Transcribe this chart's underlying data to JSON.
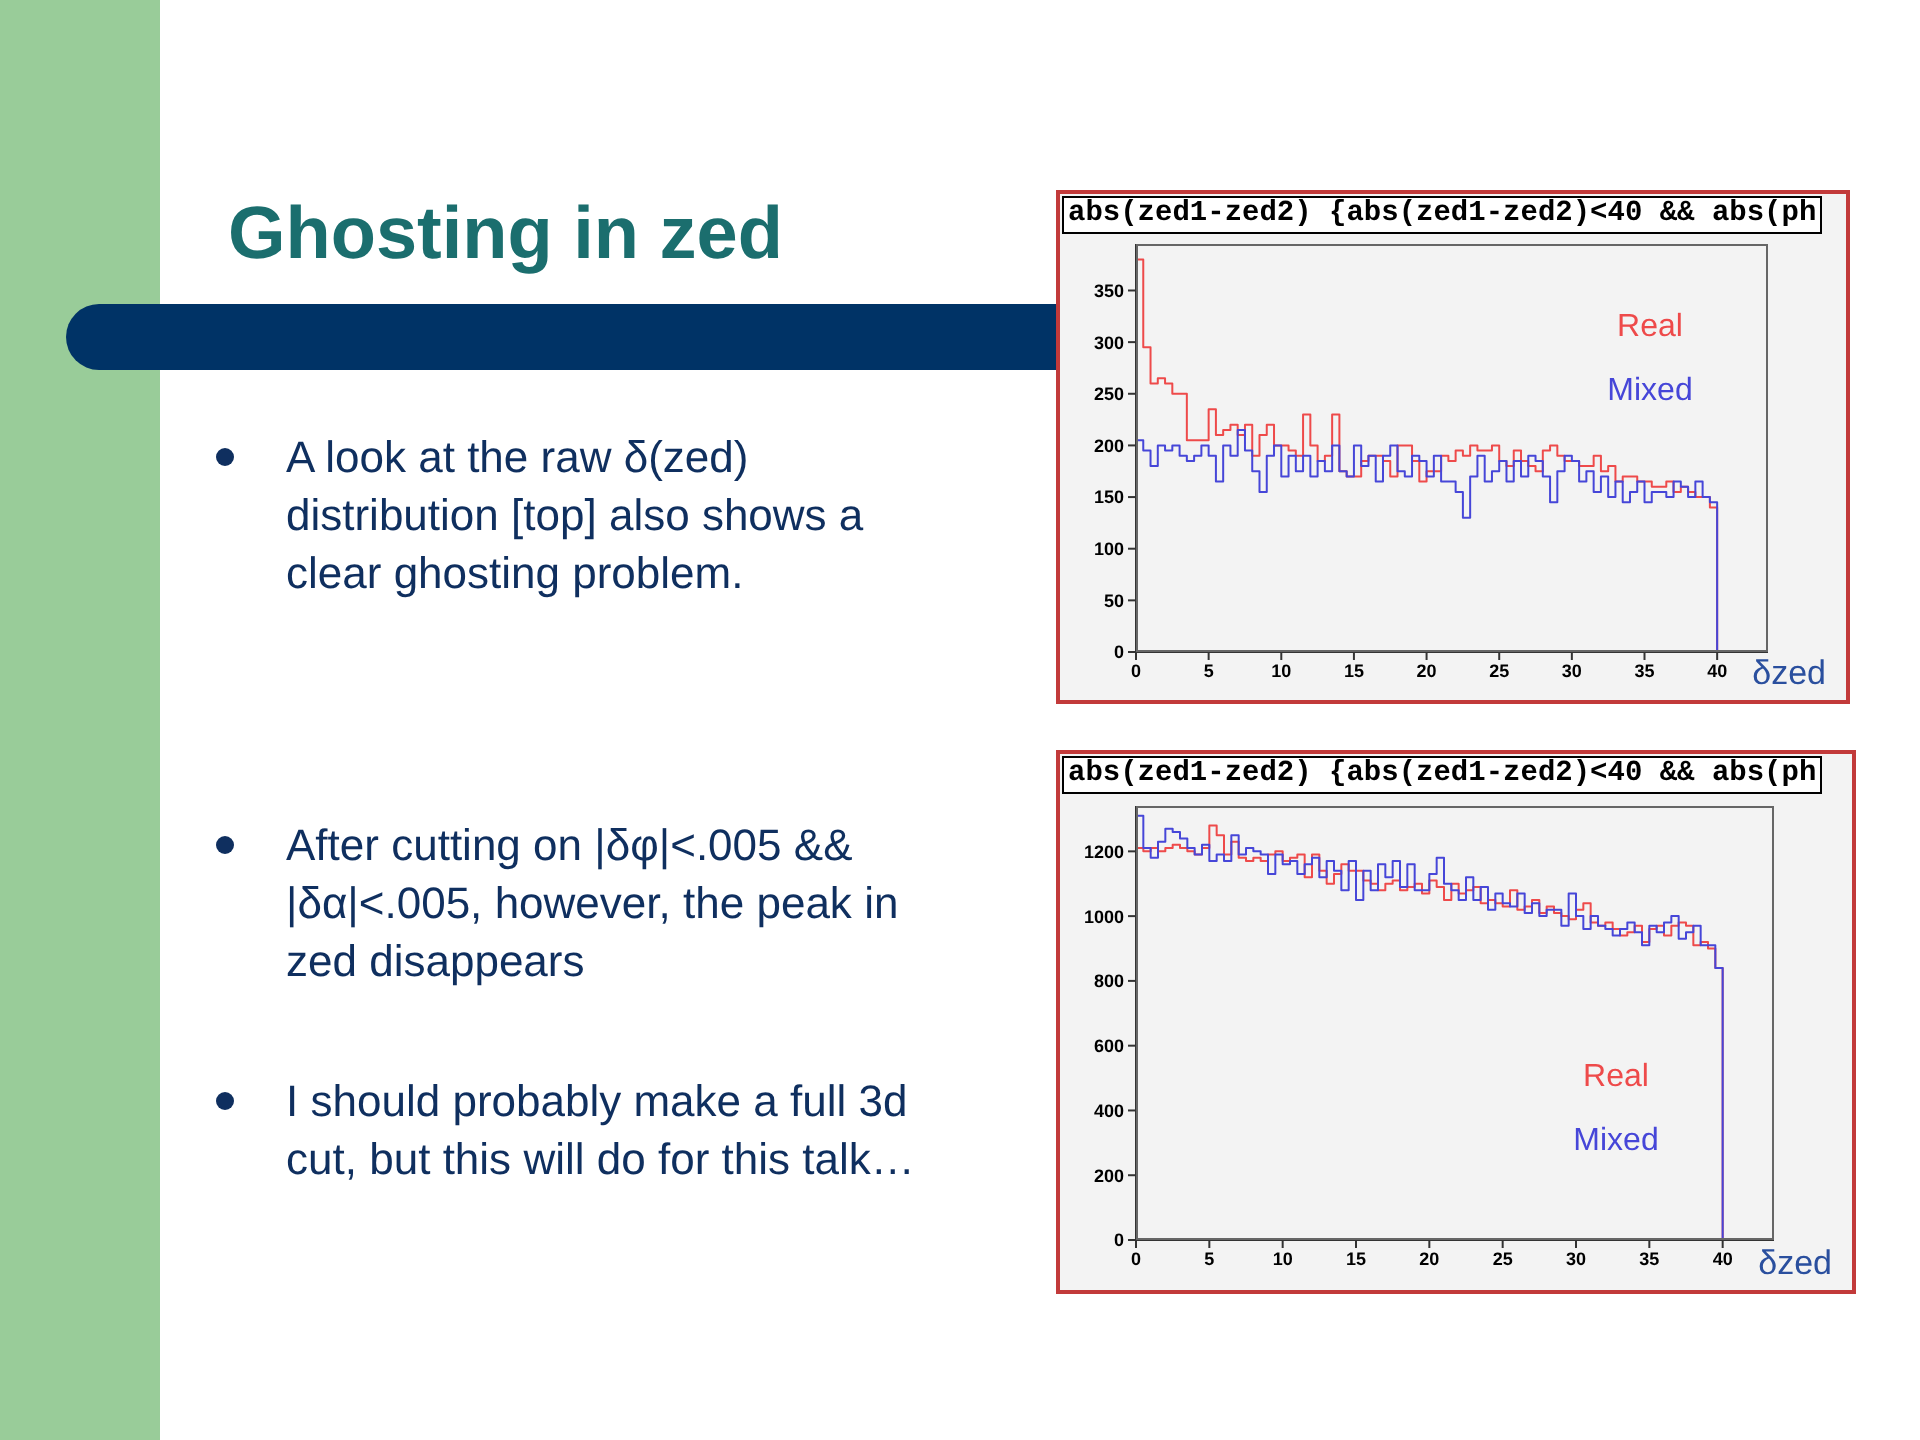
{
  "chart_data": [
    {
      "type": "other",
      "title": "Ghosting in zed",
      "annotations": [
        "A look at the raw δ(zed) distribution [top] also shows a clear ghosting problem.",
        "After cutting on |δφ|<.005 && |δα|<.005, however, the peak in zed disappears",
        "I should probably make a full 3d cut, but this will do for this talk…"
      ]
    },
    {
      "type": "histogram",
      "title": "abs(zed1-zed2) {abs(zed1-zed2)<40 && abs(ph",
      "xlabel": "δzed",
      "legend": "top right",
      "bins": [
        0,
        0.5,
        1,
        1.5,
        2,
        2.5,
        3,
        3.5,
        4,
        4.5,
        5,
        5.5,
        6,
        6.5,
        7,
        7.5,
        8,
        8.5,
        9,
        9.5,
        10,
        10.5,
        11,
        11.5,
        12,
        12.5,
        13,
        13.5,
        14,
        14.5,
        15,
        15.5,
        16,
        16.5,
        17,
        17.5,
        18,
        18.5,
        19,
        19.5,
        20,
        20.5,
        21,
        21.5,
        22,
        22.5,
        23,
        23.5,
        24,
        24.5,
        25,
        25.5,
        26,
        26.5,
        27,
        27.5,
        28,
        28.5,
        29,
        29.5,
        30,
        30.5,
        31,
        31.5,
        32,
        32.5,
        33,
        33.5,
        34,
        34.5,
        35,
        35.5,
        36,
        36.5,
        37,
        37.5,
        38,
        38.5,
        39,
        39.5,
        40,
        40.5,
        41,
        41.5,
        42,
        42.5,
        43,
        43.5
      ],
      "series": [
        {
          "name": "Real",
          "color": "#ee4a4a",
          "values": [
            380,
            295,
            260,
            265,
            260,
            250,
            250,
            205,
            205,
            205,
            235,
            210,
            215,
            220,
            210,
            220,
            190,
            210,
            220,
            200,
            200,
            195,
            190,
            230,
            200,
            185,
            190,
            230,
            175,
            170,
            170,
            185,
            190,
            190,
            185,
            170,
            200,
            200,
            185,
            165,
            175,
            175,
            190,
            185,
            195,
            190,
            200,
            195,
            195,
            200,
            185,
            180,
            195,
            185,
            180,
            175,
            195,
            200,
            190,
            185,
            185,
            180,
            180,
            190,
            175,
            180,
            165,
            170,
            170,
            165,
            165,
            160,
            160,
            165,
            155,
            160,
            155,
            150,
            150,
            140,
            0,
            0,
            0,
            0,
            0,
            0,
            0
          ]
        },
        {
          "name": "Mixed",
          "color": "#4646d8",
          "values": [
            205,
            195,
            180,
            200,
            195,
            200,
            190,
            185,
            190,
            200,
            190,
            165,
            200,
            190,
            215,
            195,
            175,
            155,
            190,
            200,
            170,
            190,
            175,
            190,
            170,
            185,
            175,
            200,
            175,
            170,
            200,
            180,
            190,
            165,
            190,
            200,
            175,
            170,
            190,
            185,
            170,
            190,
            165,
            165,
            155,
            130,
            170,
            190,
            165,
            175,
            185,
            165,
            185,
            170,
            190,
            185,
            170,
            145,
            175,
            190,
            185,
            165,
            175,
            155,
            170,
            150,
            165,
            145,
            155,
            165,
            145,
            155,
            155,
            150,
            165,
            160,
            150,
            165,
            150,
            145,
            0,
            0,
            0,
            0,
            0,
            0,
            0
          ]
        }
      ],
      "xlim": [
        0,
        43.5
      ],
      "xticks": [
        0,
        5,
        10,
        15,
        20,
        25,
        30,
        35,
        40
      ],
      "ylim": [
        0,
        395
      ],
      "yticks": [
        0,
        50,
        100,
        150,
        200,
        250,
        300,
        350
      ]
    },
    {
      "type": "histogram",
      "title": "abs(zed1-zed2) {abs(zed1-zed2)<40 && abs(ph",
      "xlabel": "δzed",
      "legend": "bottom right",
      "bins": [
        0,
        0.5,
        1,
        1.5,
        2,
        2.5,
        3,
        3.5,
        4,
        4.5,
        5,
        5.5,
        6,
        6.5,
        7,
        7.5,
        8,
        8.5,
        9,
        9.5,
        10,
        10.5,
        11,
        11.5,
        12,
        12.5,
        13,
        13.5,
        14,
        14.5,
        15,
        15.5,
        16,
        16.5,
        17,
        17.5,
        18,
        18.5,
        19,
        19.5,
        20,
        20.5,
        21,
        21.5,
        22,
        22.5,
        23,
        23.5,
        24,
        24.5,
        25,
        25.5,
        26,
        26.5,
        27,
        27.5,
        28,
        28.5,
        29,
        29.5,
        30,
        30.5,
        31,
        31.5,
        32,
        32.5,
        33,
        33.5,
        34,
        34.5,
        35,
        35.5,
        36,
        36.5,
        37,
        37.5,
        38,
        38.5,
        39,
        39.5,
        40,
        40.5,
        41,
        41.5,
        42,
        42.5,
        43,
        43.5
      ],
      "series": [
        {
          "name": "Real",
          "color": "#ee4a4a",
          "values": [
            1210,
            1200,
            1210,
            1200,
            1210,
            1220,
            1210,
            1200,
            1190,
            1210,
            1280,
            1250,
            1190,
            1230,
            1180,
            1170,
            1180,
            1170,
            1190,
            1200,
            1170,
            1180,
            1190,
            1120,
            1190,
            1140,
            1100,
            1130,
            1160,
            1140,
            1140,
            1110,
            1100,
            1080,
            1100,
            1110,
            1080,
            1090,
            1100,
            1070,
            1110,
            1090,
            1050,
            1100,
            1070,
            1080,
            1090,
            1040,
            1050,
            1040,
            1030,
            1080,
            1020,
            1030,
            1050,
            1010,
            1030,
            1010,
            1000,
            990,
            1020,
            1040,
            980,
            970,
            980,
            960,
            940,
            950,
            970,
            920,
            960,
            970,
            940,
            970,
            980,
            970,
            910,
            920,
            900,
            840,
            0,
            0,
            0,
            0,
            0,
            0,
            0
          ]
        },
        {
          "name": "Mixed",
          "color": "#4646d8",
          "values": [
            1310,
            1210,
            1180,
            1230,
            1270,
            1260,
            1240,
            1210,
            1190,
            1220,
            1170,
            1190,
            1170,
            1250,
            1190,
            1210,
            1200,
            1190,
            1130,
            1190,
            1160,
            1170,
            1130,
            1160,
            1180,
            1120,
            1170,
            1140,
            1080,
            1170,
            1050,
            1140,
            1080,
            1160,
            1120,
            1170,
            1090,
            1160,
            1080,
            1080,
            1130,
            1180,
            1100,
            1080,
            1050,
            1120,
            1050,
            1090,
            1020,
            1070,
            1040,
            1030,
            1070,
            1010,
            1040,
            1000,
            1020,
            1020,
            970,
            1070,
            1000,
            960,
            1000,
            970,
            960,
            940,
            960,
            980,
            950,
            910,
            970,
            950,
            980,
            1000,
            930,
            950,
            970,
            910,
            910,
            840,
            0,
            0,
            0,
            0,
            0,
            0,
            0
          ]
        }
      ],
      "xlim": [
        0,
        43.5
      ],
      "xticks": [
        0,
        5,
        10,
        15,
        20,
        25,
        30,
        35,
        40
      ],
      "ylim": [
        0,
        1340
      ],
      "yticks": [
        0,
        200,
        400,
        600,
        800,
        1000,
        1200
      ]
    }
  ]
}
